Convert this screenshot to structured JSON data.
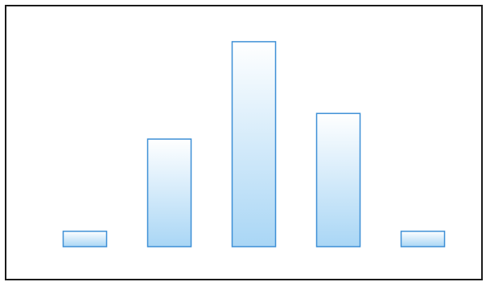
{
  "chart_data": {
    "type": "bar",
    "title": "",
    "xlabel": "",
    "ylabel": "",
    "categories": [
      "",
      "",
      "",
      "",
      ""
    ],
    "values": [
      3,
      21,
      40,
      26,
      3
    ],
    "ylim": [
      0,
      45
    ],
    "yticks": [],
    "grid": false,
    "legend": "none",
    "colors": {
      "bar_fill_top": "#ffffff",
      "bar_fill_bottom": "#a9d6f5",
      "bar_stroke": "#3d8fd6",
      "frame": "#1a1a1a",
      "tick_label": "#e6e6ee"
    }
  }
}
